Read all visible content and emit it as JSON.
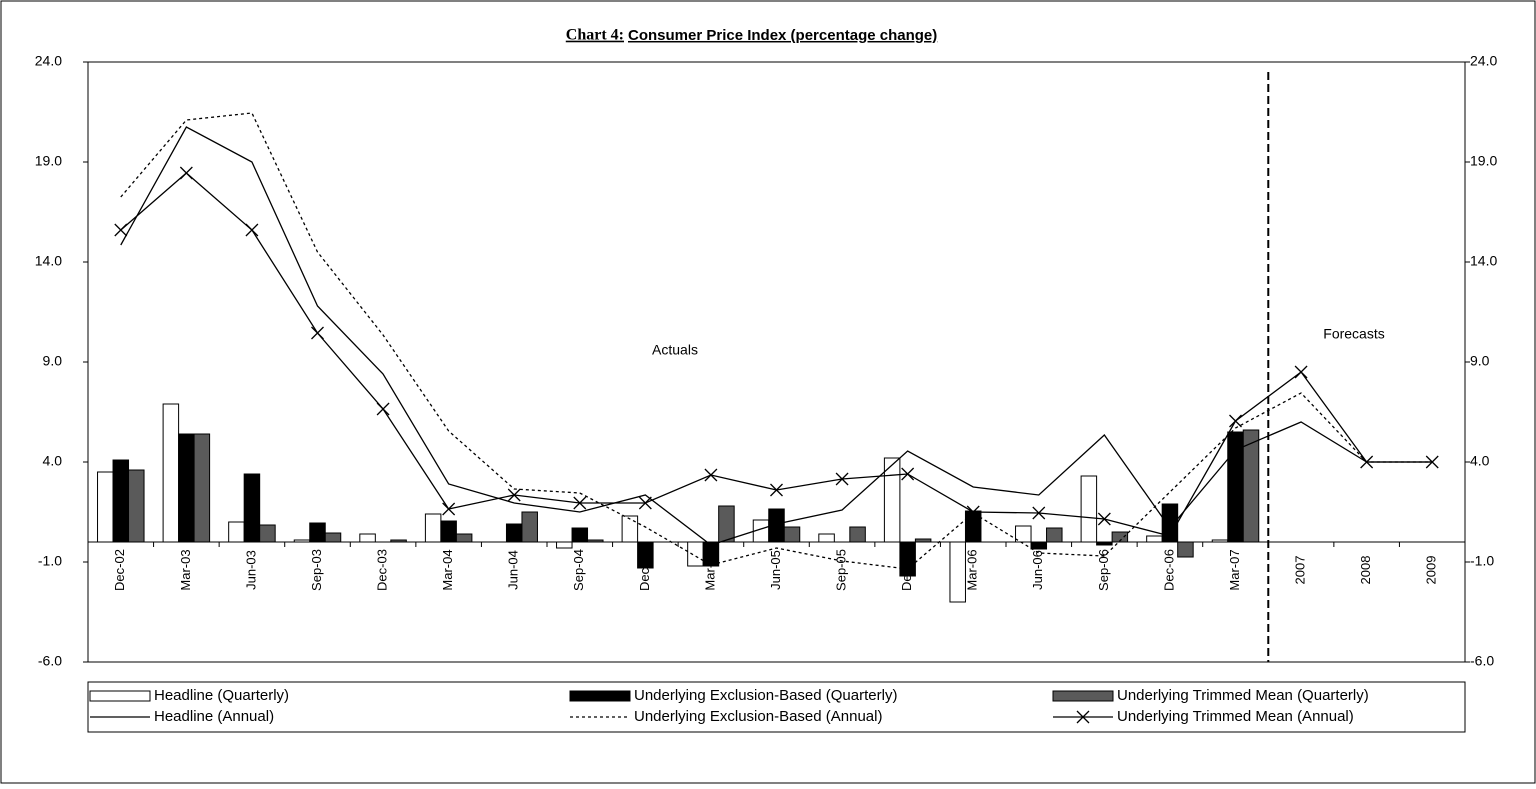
{
  "chart_data": {
    "type": "bar",
    "title_label": "Chart 4:",
    "title": "Consumer Price Index (percentage change)",
    "annotations": [
      "Actuals",
      "Forecasts"
    ],
    "categories": [
      "Dec-02",
      "Mar-03",
      "Jun-03",
      "Sep-03",
      "Dec-03",
      "Mar-04",
      "Jun-04",
      "Sep-04",
      "Dec-04",
      "Mar-05",
      "Jun-05",
      "Sep-05",
      "Dec-05",
      "Mar-06",
      "Jun-06",
      "Sep-06",
      "Dec-06",
      "Mar-07",
      "2007",
      "2008",
      "2009"
    ],
    "ylim": [
      -6,
      24
    ],
    "yticks": [
      {
        "value": 24,
        "label": "24.0"
      },
      {
        "value": 19,
        "label": "19.0"
      },
      {
        "value": 14,
        "label": "14.0"
      },
      {
        "value": 9,
        "label": "9.0"
      },
      {
        "value": 4,
        "label": "4.0"
      },
      {
        "value": -1,
        "label": "-1.0"
      },
      {
        "value": -6,
        "label": "-6.0"
      }
    ],
    "y2lim": [
      -6,
      24
    ],
    "y2ticks": [
      {
        "value": 24,
        "label": "24.0"
      },
      {
        "value": 19,
        "label": "19.0"
      },
      {
        "value": 14,
        "label": "14.0"
      },
      {
        "value": 9,
        "label": "9.0"
      },
      {
        "value": 4,
        "label": "4.0"
      },
      {
        "value": -1,
        "label": "-1.0"
      },
      {
        "value": -6,
        "label": "-6.0"
      }
    ],
    "legend": "bottom",
    "series": [
      {
        "name": "Headline (Quarterly)",
        "type": "bar",
        "color": "#ffffff",
        "values": [
          3.5,
          6.9,
          1.0,
          0.1,
          0.4,
          1.4,
          0.0,
          -0.3,
          1.3,
          -1.2,
          1.1,
          0.4,
          4.2,
          -3.0,
          0.8,
          3.3,
          0.3,
          0.1,
          null,
          null,
          null
        ]
      },
      {
        "name": "Underlying Exclusion-Based (Quarterly)",
        "type": "bar",
        "color": "#000000",
        "values": [
          4.1,
          5.4,
          3.4,
          0.95,
          0.0,
          1.05,
          0.9,
          0.7,
          -1.3,
          -1.2,
          1.65,
          0.0,
          -1.7,
          1.55,
          -0.35,
          -0.15,
          1.9,
          5.5,
          null,
          null,
          null
        ]
      },
      {
        "name": "Underlying Trimmed Mean (Quarterly)",
        "type": "bar",
        "color": "#5a5a5a",
        "values": [
          3.6,
          5.4,
          0.85,
          0.45,
          0.1,
          0.4,
          1.5,
          0.1,
          0.0,
          1.8,
          0.75,
          0.75,
          0.15,
          0.0,
          0.7,
          0.5,
          -0.75,
          5.6,
          null,
          null,
          null
        ]
      },
      {
        "name": "Headline (Annual)",
        "type": "line",
        "color": "#000000",
        "dash": "solid",
        "values": [
          14.85,
          20.75,
          19.0,
          11.8,
          8.4,
          2.9,
          1.95,
          1.5,
          2.35,
          -0.15,
          0.9,
          1.6,
          4.55,
          2.75,
          2.35,
          5.35,
          0.7,
          4.6,
          6.0,
          4.0,
          4.0
        ]
      },
      {
        "name": "Underlying Exclusion-Based (Annual)",
        "type": "line",
        "color": "#000000",
        "dash": "dotted",
        "values": [
          17.25,
          21.1,
          21.45,
          14.5,
          10.35,
          5.55,
          2.65,
          2.45,
          0.75,
          -1.15,
          -0.3,
          -0.95,
          -1.35,
          1.45,
          -0.55,
          -0.7,
          2.5,
          5.7,
          7.45,
          4.0,
          4.0
        ]
      },
      {
        "name": "Underlying Trimmed Mean (Annual)",
        "type": "line",
        "color": "#000000",
        "dash": "solid",
        "marker": "x",
        "values": [
          15.6,
          18.45,
          15.6,
          10.45,
          6.65,
          1.65,
          2.35,
          1.95,
          1.95,
          3.35,
          2.6,
          3.15,
          3.4,
          1.5,
          1.45,
          1.15,
          0.3,
          6.05,
          8.5,
          4.0,
          4.0
        ]
      }
    ]
  }
}
